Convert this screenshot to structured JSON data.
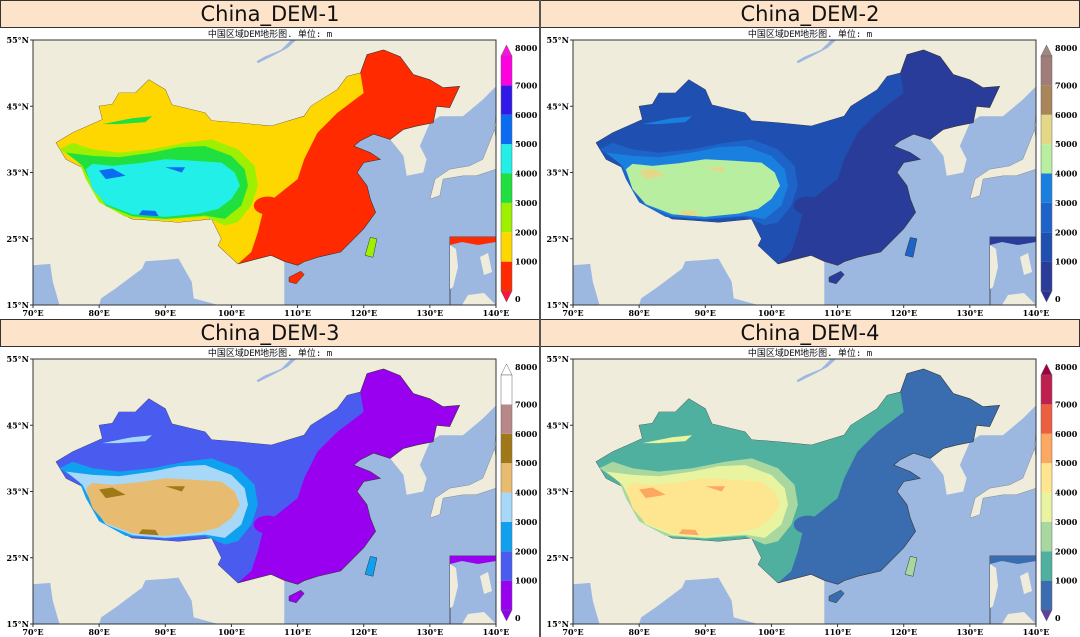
{
  "figure": {
    "panels": [
      {
        "title": "China_DEM-1",
        "subtitle": "中国区域DEM地形图. 单位: m",
        "colors": [
          "#ff2a00",
          "#ffd700",
          "#9ef000",
          "#20e040",
          "#22f0e8",
          "#0a6cf0",
          "#3018e8",
          "#ff00e0"
        ],
        "under": "#ff1040",
        "over": "#ff10e0"
      },
      {
        "title": "China_DEM-2",
        "subtitle": "中国区域DEM地形图. 单位: m",
        "colors": [
          "#2a3c9a",
          "#1f4fb0",
          "#1d63c8",
          "#1a80e0",
          "#b8eea0",
          "#e4d888",
          "#a8865a",
          "#a07d78"
        ],
        "under": "#2a3090",
        "over": "#a08880"
      },
      {
        "title": "China_DEM-3",
        "subtitle": "中国区域DEM地形图. 单位: m",
        "colors": [
          "#9a00f0",
          "#4a5cf0",
          "#10a0f0",
          "#a8d8f8",
          "#e8bc70",
          "#a07818",
          "#b88888",
          "#ffffff"
        ],
        "under": "#9000f0",
        "over": "#ffffff"
      },
      {
        "title": "China_DEM-4",
        "subtitle": "中国区域DEM地形图. 单位: m",
        "colors": [
          "#3a6cb0",
          "#50b0a0",
          "#a8d8a0",
          "#e8f4a0",
          "#fee690",
          "#fca860",
          "#ec6040",
          "#c02050"
        ],
        "under": "#6040a0",
        "over": "#a00040"
      }
    ],
    "colorbar_ticks": [
      "0",
      "1000",
      "2000",
      "3000",
      "4000",
      "5000",
      "6000",
      "7000",
      "8000"
    ],
    "lat_ticks": [
      "55°N",
      "45°N",
      "35°N",
      "25°N",
      "15°N"
    ],
    "lon_ticks": [
      "70°E",
      "80°E",
      "90°E",
      "100°E",
      "110°E",
      "120°E",
      "130°E",
      "140°E"
    ],
    "land_color": "#efecdc",
    "ocean_color": "#9db8e0"
  }
}
